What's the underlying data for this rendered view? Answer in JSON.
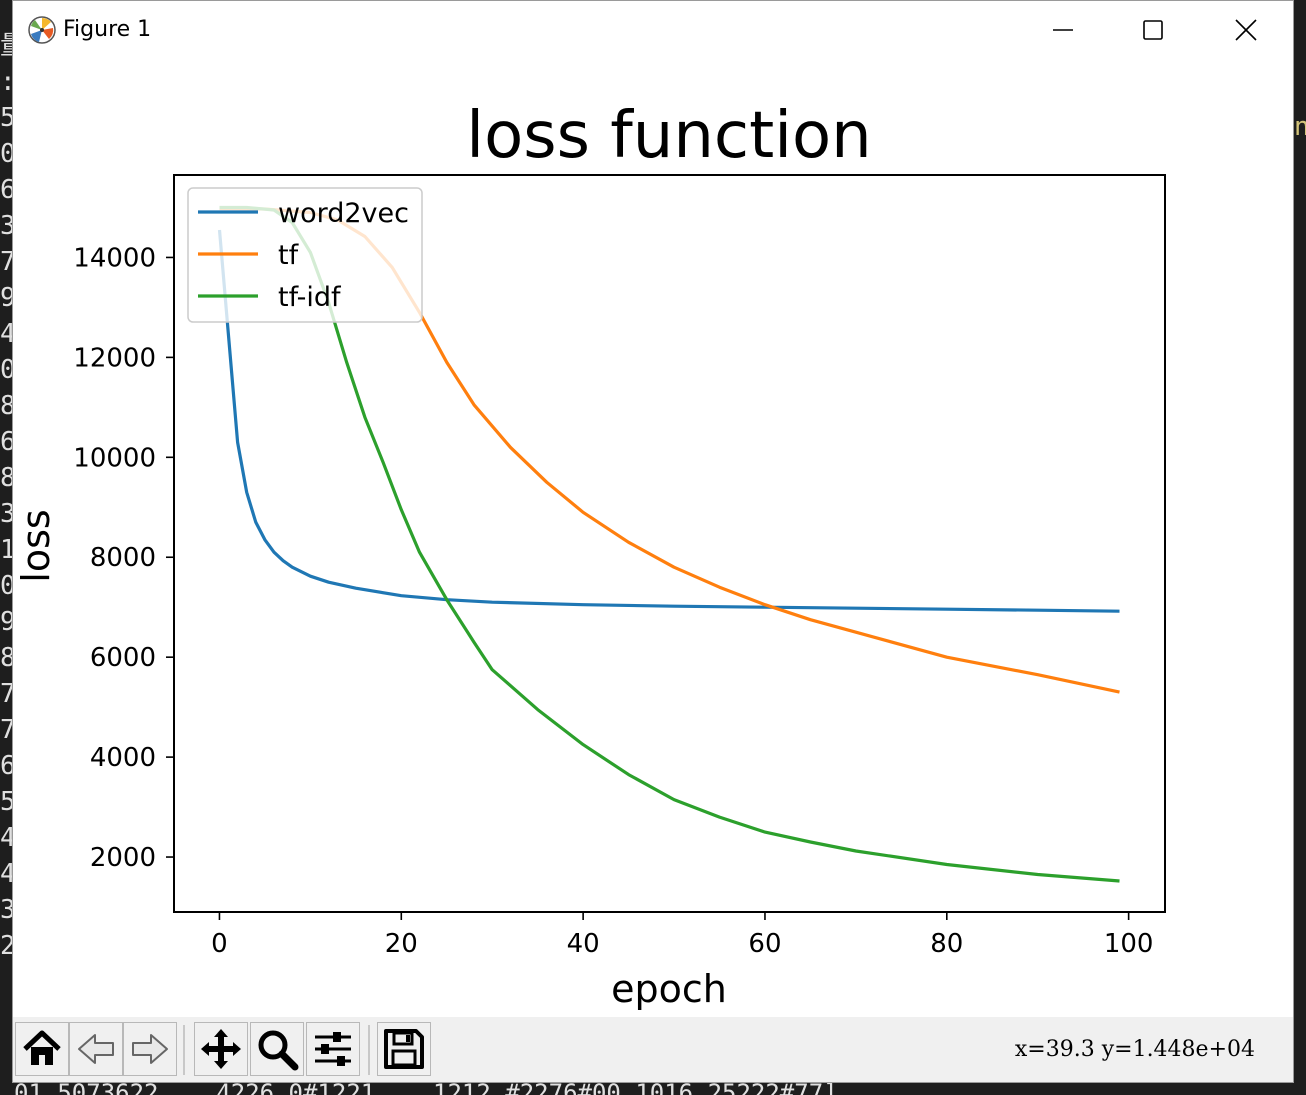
{
  "window": {
    "title": "Figure 1",
    "controls": [
      "minimize",
      "maximize",
      "close"
    ]
  },
  "toolbar": {
    "buttons": [
      "home-icon",
      "back-icon",
      "forward-icon",
      "pan-icon",
      "zoom-icon",
      "configure-subplots-icon",
      "save-icon"
    ],
    "coordinates": "x=39.3  y=1.448e+04"
  },
  "background_text": {
    "left_column": [
      "量",
      ":",
      "5",
      "0",
      "6",
      "3",
      "7",
      "9",
      "4",
      "0",
      "8",
      "6",
      "8",
      "3",
      "1",
      "0",
      "9",
      "8",
      "7",
      "7",
      "6",
      "5",
      "4",
      "4",
      "3",
      "2"
    ],
    "right_fragment": "n"
  },
  "chart_data": {
    "type": "line",
    "title": "loss function",
    "xlabel": "epoch",
    "ylabel": "loss",
    "xlim": [
      -5,
      104
    ],
    "ylim": [
      900,
      15650
    ],
    "xticks": [
      0,
      20,
      40,
      60,
      80,
      100
    ],
    "yticks": [
      2000,
      4000,
      6000,
      8000,
      10000,
      12000,
      14000
    ],
    "legend": "upper-left",
    "grid": false,
    "x": [
      0,
      2,
      3,
      4,
      5,
      6,
      8,
      10,
      12,
      15,
      20,
      25,
      30,
      40,
      50,
      60,
      70,
      80,
      90,
      99
    ],
    "series": [
      {
        "name": "word2vec",
        "color": "#1f77b4",
        "x": [
          0,
          2,
          3,
          4,
          5,
          6,
          7,
          8,
          10,
          12,
          15,
          20,
          25,
          30,
          40,
          50,
          60,
          70,
          80,
          90,
          99
        ],
        "values": [
          14550,
          10300,
          9300,
          8700,
          8350,
          8100,
          7930,
          7800,
          7620,
          7500,
          7380,
          7230,
          7150,
          7100,
          7050,
          7020,
          7000,
          6980,
          6960,
          6940,
          6920
        ]
      },
      {
        "name": "tf",
        "color": "#ff7f0e",
        "x": [
          0,
          5,
          10,
          13,
          16,
          19,
          22,
          25,
          28,
          32,
          36,
          40,
          45,
          50,
          55,
          60,
          65,
          70,
          80,
          90,
          99
        ],
        "values": [
          14980,
          14970,
          14900,
          14750,
          14420,
          13800,
          12900,
          11900,
          11050,
          10200,
          9500,
          8900,
          8300,
          7800,
          7400,
          7050,
          6750,
          6500,
          6000,
          5650,
          5300
        ]
      },
      {
        "name": "tf-idf",
        "color": "#2ca02c",
        "x": [
          0,
          3,
          6,
          8,
          10,
          12,
          14,
          16,
          18,
          20,
          22,
          25,
          28,
          30,
          35,
          40,
          45,
          50,
          55,
          60,
          65,
          70,
          80,
          90,
          99
        ],
        "values": [
          15000,
          15000,
          14950,
          14700,
          14100,
          13100,
          11900,
          10800,
          9900,
          8950,
          8100,
          7150,
          6300,
          5750,
          4950,
          4250,
          3650,
          3150,
          2800,
          2500,
          2300,
          2120,
          1850,
          1650,
          1520
        ]
      }
    ]
  }
}
